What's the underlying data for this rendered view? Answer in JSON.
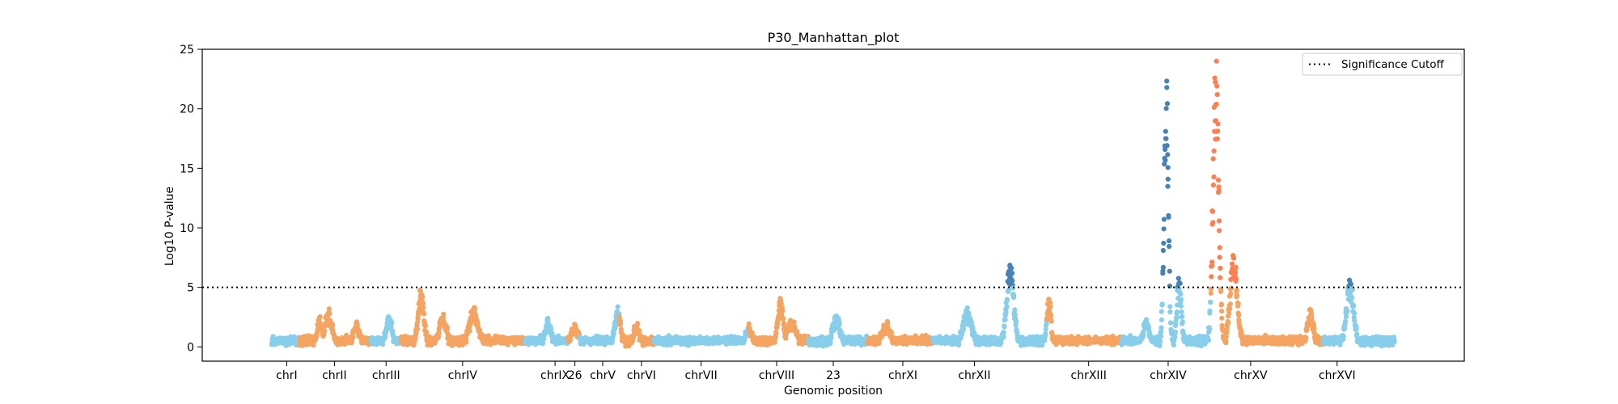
{
  "chart_data": {
    "type": "scatter",
    "title": "P30_Manhattan_plot",
    "xlabel": "Genomic position",
    "ylabel": "Log10 P-value",
    "ylim": [
      -1.2,
      25
    ],
    "yticks": [
      0,
      5,
      10,
      15,
      20,
      25
    ],
    "grid": false,
    "legend": {
      "position": "top-right",
      "entries": [
        "Significance Cutoff"
      ]
    },
    "cutoff": 5,
    "colors": {
      "light_blue": "#87CEEB",
      "sandy_orange": "#F4A460",
      "steel_blue": "#4682B4",
      "coral": "#FF7F50"
    },
    "chromosomes": [
      {
        "label": "chrI",
        "start": 0,
        "end": 28,
        "center": 15,
        "base": "light_blue"
      },
      {
        "label": "chrII",
        "start": 28,
        "end": 100,
        "center": 63,
        "base": "sandy_orange"
      },
      {
        "label": "chrIII",
        "start": 100,
        "end": 130,
        "center": 115,
        "base": "light_blue"
      },
      {
        "label": "chrIV",
        "start": 130,
        "end": 255,
        "center": 192,
        "base": "sandy_orange"
      },
      {
        "label": "chrIX",
        "start": 255,
        "end": 298,
        "center": 285,
        "base": "light_blue"
      },
      {
        "label": "26",
        "start": 298,
        "end": 310,
        "center": 305,
        "base": "sandy_orange"
      },
      {
        "label": "chrV",
        "start": 310,
        "end": 350,
        "center": 333,
        "base": "light_blue"
      },
      {
        "label": "chrVI",
        "start": 350,
        "end": 385,
        "center": 372,
        "base": "sandy_orange"
      },
      {
        "label": "chrVII",
        "start": 385,
        "end": 480,
        "center": 432,
        "base": "light_blue"
      },
      {
        "label": "chrVIII",
        "start": 480,
        "end": 540,
        "center": 508,
        "base": "sandy_orange"
      },
      {
        "label": "23",
        "start": 540,
        "end": 600,
        "center": 565,
        "base": "light_blue"
      },
      {
        "label": "chrXI",
        "start": 600,
        "end": 665,
        "center": 635,
        "base": "sandy_orange"
      },
      {
        "label": "chrXII",
        "start": 665,
        "end": 780,
        "center": 707,
        "base": "light_blue"
      },
      {
        "label": "chrXIII",
        "start": 780,
        "end": 855,
        "center": 822,
        "base": "sandy_orange"
      },
      {
        "label": "chrXIV",
        "start": 855,
        "end": 945,
        "center": 902,
        "base": "light_blue"
      },
      {
        "label": "chrXV",
        "start": 945,
        "end": 1058,
        "center": 985,
        "base": "sandy_orange"
      },
      {
        "label": "chrXVI",
        "start": 1058,
        "end": 1130,
        "center": 1072,
        "base": "light_blue"
      }
    ],
    "peaks": [
      {
        "x": 48,
        "y": 2.0,
        "w": 3
      },
      {
        "x": 57,
        "y": 2.4,
        "w": 5
      },
      {
        "x": 85,
        "y": 1.5,
        "w": 4
      },
      {
        "x": 118,
        "y": 2.0,
        "w": 4
      },
      {
        "x": 150,
        "y": 4.2,
        "w": 4
      },
      {
        "x": 172,
        "y": 2.1,
        "w": 5
      },
      {
        "x": 203,
        "y": 2.6,
        "w": 6
      },
      {
        "x": 278,
        "y": 1.8,
        "w": 4
      },
      {
        "x": 305,
        "y": 1.3,
        "w": 5
      },
      {
        "x": 348,
        "y": 2.6,
        "w": 4
      },
      {
        "x": 367,
        "y": 1.4,
        "w": 4
      },
      {
        "x": 480,
        "y": 1.2,
        "w": 4
      },
      {
        "x": 512,
        "y": 3.2,
        "w": 4
      },
      {
        "x": 523,
        "y": 1.8,
        "w": 6
      },
      {
        "x": 568,
        "y": 2.2,
        "w": 5
      },
      {
        "x": 618,
        "y": 1.4,
        "w": 6
      },
      {
        "x": 700,
        "y": 2.6,
        "w": 6
      },
      {
        "x": 743,
        "y": 6.3,
        "w": 5
      },
      {
        "x": 782,
        "y": 3.6,
        "w": 3
      },
      {
        "x": 880,
        "y": 1.8,
        "w": 4
      },
      {
        "x": 900,
        "y": 21.0,
        "w": 3
      },
      {
        "x": 913,
        "y": 5.5,
        "w": 3
      },
      {
        "x": 950,
        "y": 22.5,
        "w": 4
      },
      {
        "x": 968,
        "y": 7.0,
        "w": 5
      },
      {
        "x": 1045,
        "y": 2.5,
        "w": 4
      },
      {
        "x": 1085,
        "y": 5.0,
        "w": 5
      }
    ]
  }
}
